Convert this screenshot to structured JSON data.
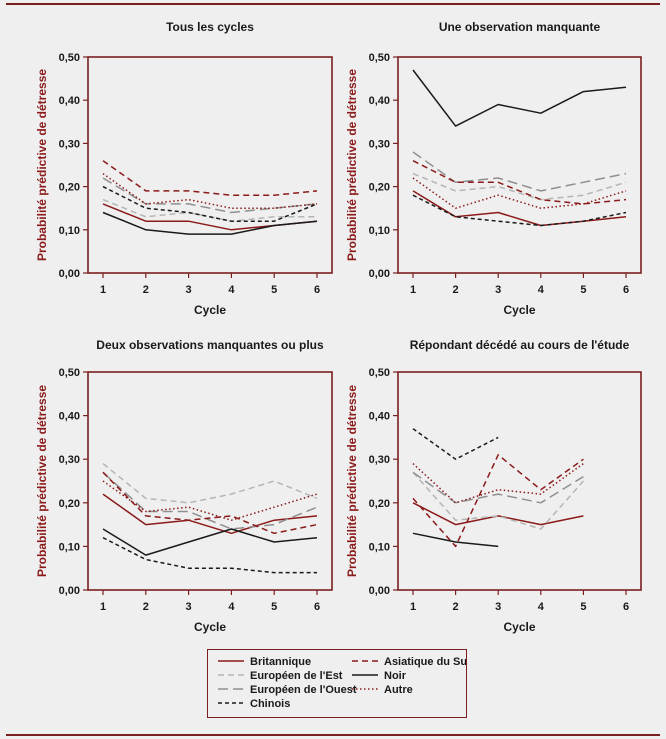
{
  "chart_data": [
    {
      "type": "line",
      "title": "Tous les cycles",
      "xlabel": "Cycle",
      "ylabel": "Probabilité prédictive de détresse",
      "x": [
        1,
        2,
        3,
        4,
        5,
        6
      ],
      "xticks": [
        "1",
        "2",
        "3",
        "4",
        "5",
        "6"
      ],
      "yticks": [
        "0,00",
        "0,10",
        "0,20",
        "0,30",
        "0,40",
        "0,50"
      ],
      "ylim": [
        0,
        0.5
      ],
      "series": [
        {
          "name": "Britannique",
          "values": [
            0.16,
            0.12,
            0.12,
            0.1,
            0.11,
            0.12
          ]
        },
        {
          "name": "Européen de l'Est",
          "values": [
            0.17,
            0.13,
            0.14,
            0.12,
            0.13,
            0.13
          ]
        },
        {
          "name": "Européen de l'Ouest",
          "values": [
            0.22,
            0.16,
            0.16,
            0.14,
            0.15,
            0.16
          ]
        },
        {
          "name": "Chinois",
          "values": [
            0.2,
            0.15,
            0.14,
            0.12,
            0.12,
            0.16
          ]
        },
        {
          "name": "Asiatique du Sud",
          "values": [
            0.26,
            0.19,
            0.19,
            0.18,
            0.18,
            0.19
          ]
        },
        {
          "name": "Noir",
          "values": [
            0.14,
            0.1,
            0.09,
            0.09,
            0.11,
            0.12
          ]
        },
        {
          "name": "Autre",
          "values": [
            0.23,
            0.16,
            0.17,
            0.15,
            0.15,
            0.16
          ]
        }
      ]
    },
    {
      "type": "line",
      "title": "Une observation manquante",
      "xlabel": "Cycle",
      "ylabel": "Probabilité prédictive de détresse",
      "x": [
        1,
        2,
        3,
        4,
        5,
        6
      ],
      "xticks": [
        "1",
        "2",
        "3",
        "4",
        "5",
        "6"
      ],
      "yticks": [
        "0,00",
        "0,10",
        "0,20",
        "0,30",
        "0,40",
        "0,50"
      ],
      "ylim": [
        0,
        0.5
      ],
      "series": [
        {
          "name": "Britannique",
          "values": [
            0.19,
            0.13,
            0.14,
            0.11,
            0.12,
            0.13
          ]
        },
        {
          "name": "Européen de l'Est",
          "values": [
            0.23,
            0.19,
            0.2,
            0.17,
            0.18,
            0.21
          ]
        },
        {
          "name": "Européen de l'Ouest",
          "values": [
            0.28,
            0.21,
            0.22,
            0.19,
            0.21,
            0.23
          ]
        },
        {
          "name": "Chinois",
          "values": [
            0.18,
            0.13,
            0.12,
            0.11,
            0.12,
            0.14
          ]
        },
        {
          "name": "Asiatique du Sud",
          "values": [
            0.26,
            0.21,
            0.21,
            0.17,
            0.16,
            0.17
          ]
        },
        {
          "name": "Noir",
          "values": [
            0.47,
            0.34,
            0.39,
            0.37,
            0.42,
            0.43
          ]
        },
        {
          "name": "Autre",
          "values": [
            0.22,
            0.15,
            0.18,
            0.15,
            0.16,
            0.19
          ]
        }
      ]
    },
    {
      "type": "line",
      "title": "Deux observations manquantes ou plus",
      "xlabel": "Cycle",
      "ylabel": "Probabilité prédictive de détresse",
      "x": [
        1,
        2,
        3,
        4,
        5,
        6
      ],
      "xticks": [
        "1",
        "2",
        "3",
        "4",
        "5",
        "6"
      ],
      "yticks": [
        "0,00",
        "0,10",
        "0,20",
        "0,30",
        "0,40",
        "0,50"
      ],
      "ylim": [
        0,
        0.5
      ],
      "series": [
        {
          "name": "Britannique",
          "values": [
            0.22,
            0.15,
            0.16,
            0.13,
            0.16,
            0.17
          ]
        },
        {
          "name": "Européen de l'Est",
          "values": [
            0.29,
            0.21,
            0.2,
            0.22,
            0.25,
            0.21
          ]
        },
        {
          "name": "Européen de l'Ouest",
          "values": [
            0.27,
            0.18,
            0.18,
            0.14,
            0.15,
            0.19
          ]
        },
        {
          "name": "Chinois",
          "values": [
            0.12,
            0.07,
            0.05,
            0.05,
            0.04,
            0.04
          ]
        },
        {
          "name": "Asiatique du Sud",
          "values": [
            0.27,
            0.17,
            0.16,
            0.17,
            0.13,
            0.15
          ]
        },
        {
          "name": "Noir",
          "values": [
            0.14,
            0.08,
            0.11,
            0.14,
            0.11,
            0.12
          ]
        },
        {
          "name": "Autre",
          "values": [
            0.25,
            0.18,
            0.19,
            0.16,
            0.19,
            0.22
          ]
        }
      ]
    },
    {
      "type": "line",
      "title": "Répondant décédé au cours de l'étude",
      "xlabel": "Cycle",
      "ylabel": "Probabilité prédictive de détresse",
      "x": [
        1,
        2,
        3,
        4,
        5,
        6
      ],
      "xticks": [
        "1",
        "2",
        "3",
        "4",
        "5",
        "6"
      ],
      "yticks": [
        "0,00",
        "0,10",
        "0,20",
        "0,30",
        "0,40",
        "0,50"
      ],
      "ylim": [
        0,
        0.5
      ],
      "series": [
        {
          "name": "Britannique",
          "values": [
            0.2,
            0.15,
            0.17,
            0.15,
            0.17,
            null
          ]
        },
        {
          "name": "Européen de l'Est",
          "values": [
            0.27,
            0.16,
            0.17,
            0.14,
            0.25,
            null
          ]
        },
        {
          "name": "Européen de l'Ouest",
          "values": [
            0.27,
            0.2,
            0.22,
            0.2,
            0.26,
            null
          ]
        },
        {
          "name": "Chinois",
          "values": [
            0.37,
            0.3,
            0.35,
            null,
            null,
            null
          ]
        },
        {
          "name": "Asiatique du Sud",
          "values": [
            0.21,
            0.1,
            0.31,
            0.23,
            0.3,
            null
          ]
        },
        {
          "name": "Noir",
          "values": [
            0.13,
            0.11,
            0.1,
            null,
            null,
            null
          ]
        },
        {
          "name": "Autre",
          "values": [
            0.29,
            0.2,
            0.23,
            0.22,
            0.29,
            null
          ]
        }
      ]
    }
  ],
  "legend": {
    "items": [
      {
        "label": "Britannique",
        "color": "#8b1a1a",
        "dash": "solid"
      },
      {
        "label": "Asiatique du Sud",
        "color": "#8b1a1a",
        "dash": "dash"
      },
      {
        "label": "Européen de l'Est",
        "color": "#b5b5b5",
        "dash": "dash"
      },
      {
        "label": "Noir",
        "color": "#1a1a1a",
        "dash": "solid"
      },
      {
        "label": "Européen de l'Ouest",
        "color": "#8f8f8f",
        "dash": "longdash"
      },
      {
        "label": "Autre",
        "color": "#8b1a1a",
        "dash": "dot"
      },
      {
        "label": "Chinois",
        "color": "#1a1a1a",
        "dash": "shortdash"
      }
    ]
  },
  "styles": {
    "Britannique": {
      "color": "#8b1a1a",
      "dash": "solid"
    },
    "Européen de l'Est": {
      "color": "#b5b5b5",
      "dash": "dash"
    },
    "Européen de l'Ouest": {
      "color": "#8f8f8f",
      "dash": "longdash"
    },
    "Chinois": {
      "color": "#1a1a1a",
      "dash": "shortdash"
    },
    "Asiatique du Sud": {
      "color": "#8b1a1a",
      "dash": "dash"
    },
    "Noir": {
      "color": "#1a1a1a",
      "dash": "solid"
    },
    "Autre": {
      "color": "#8b1a1a",
      "dash": "dot"
    }
  },
  "accent_color": "#7a1f1f"
}
